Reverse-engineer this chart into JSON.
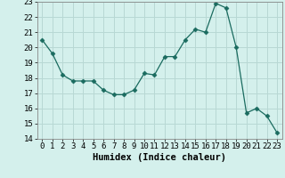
{
  "x": [
    0,
    1,
    2,
    3,
    4,
    5,
    6,
    7,
    8,
    9,
    10,
    11,
    12,
    13,
    14,
    15,
    16,
    17,
    18,
    19,
    20,
    21,
    22,
    23
  ],
  "y": [
    20.5,
    19.6,
    18.2,
    17.8,
    17.8,
    17.8,
    17.2,
    16.9,
    16.9,
    17.2,
    18.3,
    18.2,
    19.4,
    19.4,
    20.5,
    21.2,
    21.0,
    22.9,
    22.6,
    20.0,
    15.7,
    16.0,
    15.5,
    14.4
  ],
  "line_color": "#1a6b5f",
  "marker": "D",
  "marker_size": 2.5,
  "bg_color": "#d4f0ec",
  "grid_color": "#b8d8d4",
  "xlabel": "Humidex (Indice chaleur)",
  "xlim": [
    -0.5,
    23.5
  ],
  "ylim": [
    14,
    23
  ],
  "yticks": [
    14,
    15,
    16,
    17,
    18,
    19,
    20,
    21,
    22,
    23
  ],
  "xlabel_fontsize": 7.5,
  "tick_fontsize": 6.5
}
